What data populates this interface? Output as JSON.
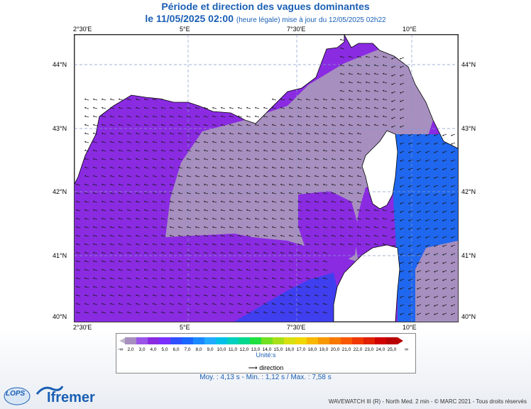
{
  "title": "Période et direction des vagues dominantes",
  "subtitle_date": "le 11/05/2025 02:00",
  "subtitle_note": "(heure légale) mise à jour du 12/05/2025 02h22",
  "axes": {
    "lon_ticks": [
      "2°30'E",
      "5°E",
      "7°30'E",
      "10°E"
    ],
    "lat_ticks": [
      "44°N",
      "43°N",
      "42°N",
      "41°N",
      "40°N"
    ]
  },
  "legend": {
    "values": [
      "2,0",
      "3,0",
      "4,0",
      "5,0",
      "6,0",
      "7,0",
      "8,0",
      "9,0",
      "10,0",
      "11,0",
      "12,0",
      "13,0",
      "14,0",
      "15,0",
      "16,0",
      "17,0",
      "18,0",
      "19,0",
      "20,0",
      "21,0",
      "22,0",
      "23,0",
      "24,0",
      "25,0"
    ],
    "colors": [
      "#a78fbf",
      "#9a55e8",
      "#8a2be2",
      "#7a2fff",
      "#3050ff",
      "#1a66ff",
      "#1a88ff",
      "#22aaff",
      "#00c0e8",
      "#00d0c0",
      "#00d890",
      "#20e040",
      "#70e020",
      "#a8e018",
      "#d8e010",
      "#f0d800",
      "#f8b800",
      "#f89800",
      "#f87800",
      "#f85800",
      "#f03800",
      "#e02000",
      "#d00000",
      "#b80000"
    ],
    "low_marker": "-∞",
    "high_marker": "∞",
    "unit": "Unité:s",
    "direction_label": "direction"
  },
  "stats": "Moy. : 4,13 s   -   Min. : 1,12 s / Max. : 7,58 s",
  "footer": "WAVEWATCH III (R) - North Med. 2 min - © MARC 2021 - Tous droits réservés",
  "logos": {
    "lops": "LOPS",
    "ifremer": "Ifremer"
  },
  "map_colors": {
    "purple": "#8a2be2",
    "grey": "#a78fbf",
    "blue": "#1f67ee",
    "darkblue": "#3f3ff0",
    "land": "#ffffff"
  }
}
